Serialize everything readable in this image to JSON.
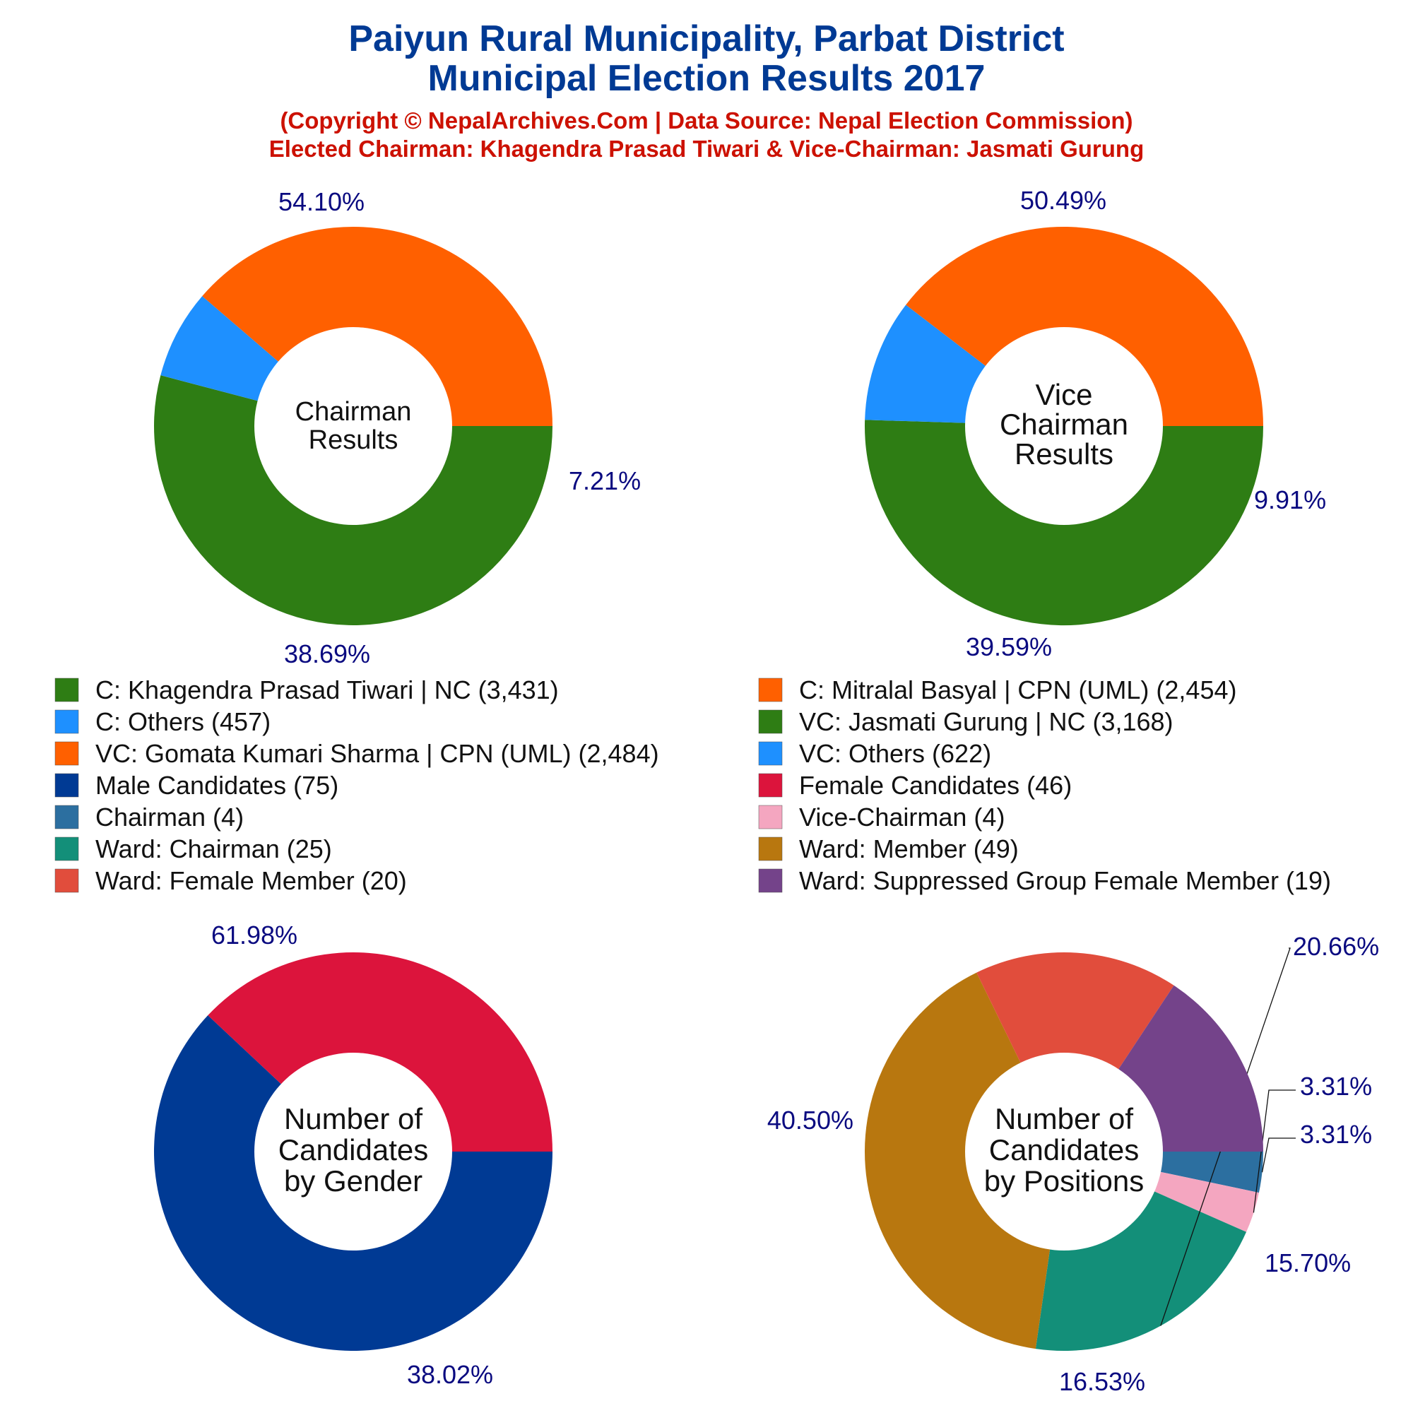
{
  "title_line1": "Paiyun Rural Municipality, Parbat District",
  "title_line2": "Municipal Election Results 2017",
  "subtitle_line1": "(Copyright © NepalArchives.Com | Data Source: Nepal Election Commission)",
  "subtitle_line2": "Elected Chairman: Khagendra Prasad Tiwari & Vice-Chairman: Jasmati Gurung",
  "chart_data": [
    {
      "type": "pie",
      "center_label": [
        "Chairman",
        "Results"
      ],
      "slices": [
        {
          "label": "C: Khagendra Prasad Tiwari | NC",
          "value": 3431,
          "percent": "54.10%",
          "color": "#2e7d14"
        },
        {
          "label": "C: Others",
          "value": 457,
          "percent": "7.21%",
          "color": "#1e90ff"
        },
        {
          "label": "C: Mitralal Basyal | CPN (UML)",
          "value": 2454,
          "percent": "38.69%",
          "color": "#ff6000"
        }
      ]
    },
    {
      "type": "pie",
      "center_label": [
        "Vice",
        "Chairman",
        "Results"
      ],
      "slices": [
        {
          "label": "VC: Jasmati Gurung | NC",
          "value": 3168,
          "percent": "50.49%",
          "color": "#2e7d14"
        },
        {
          "label": "VC: Others",
          "value": 622,
          "percent": "9.91%",
          "color": "#1e90ff"
        },
        {
          "label": "VC: Gomata Kumari Sharma | CPN (UML)",
          "value": 2484,
          "percent": "39.59%",
          "color": "#ff6000"
        }
      ]
    },
    {
      "type": "pie",
      "center_label": [
        "Number of",
        "Candidates",
        "by Gender"
      ],
      "slices": [
        {
          "label": "Male Candidates",
          "value": 75,
          "percent": "61.98%",
          "color": "#003a94"
        },
        {
          "label": "Female Candidates",
          "value": 46,
          "percent": "38.02%",
          "color": "#dc143c"
        }
      ]
    },
    {
      "type": "pie",
      "center_label": [
        "Number of",
        "Candidates",
        "by Positions"
      ],
      "slices": [
        {
          "label": "Chairman",
          "value": 4,
          "percent": "3.31%",
          "color": "#2c6fa0"
        },
        {
          "label": "Vice-Chairman",
          "value": 4,
          "percent": "3.31%",
          "color": "#f4a6c0"
        },
        {
          "label": "Ward: Chairman",
          "value": 25,
          "percent": "20.66%",
          "color": "#138f79"
        },
        {
          "label": "Ward: Member",
          "value": 49,
          "percent": "40.50%",
          "color": "#b8770f"
        },
        {
          "label": "Ward: Female Member",
          "value": 20,
          "percent": "16.53%",
          "color": "#e14d3c"
        },
        {
          "label": "Ward: Suppressed Group Female Member",
          "value": 19,
          "percent": "15.70%",
          "color": "#74438a"
        }
      ]
    }
  ],
  "legend": [
    {
      "text": "C: Khagendra Prasad Tiwari | NC (3,431)",
      "color": "#2e7d14"
    },
    {
      "text": "C: Mitralal Basyal | CPN (UML) (2,454)",
      "color": "#ff6000"
    },
    {
      "text": "C: Others (457)",
      "color": "#1e90ff"
    },
    {
      "text": "VC: Jasmati Gurung | NC (3,168)",
      "color": "#2e7d14"
    },
    {
      "text": "VC: Gomata Kumari Sharma | CPN (UML) (2,484)",
      "color": "#ff6000"
    },
    {
      "text": "VC: Others (622)",
      "color": "#1e90ff"
    },
    {
      "text": "Male Candidates (75)",
      "color": "#003a94"
    },
    {
      "text": "Female Candidates (46)",
      "color": "#dc143c"
    },
    {
      "text": "Chairman (4)",
      "color": "#2c6fa0"
    },
    {
      "text": "Vice-Chairman (4)",
      "color": "#f4a6c0"
    },
    {
      "text": "Ward: Chairman (25)",
      "color": "#138f79"
    },
    {
      "text": "Ward: Member (49)",
      "color": "#b8770f"
    },
    {
      "text": "Ward: Female Member (20)",
      "color": "#e14d3c"
    },
    {
      "text": "Ward: Suppressed Group Female Member (19)",
      "color": "#74438a"
    }
  ]
}
